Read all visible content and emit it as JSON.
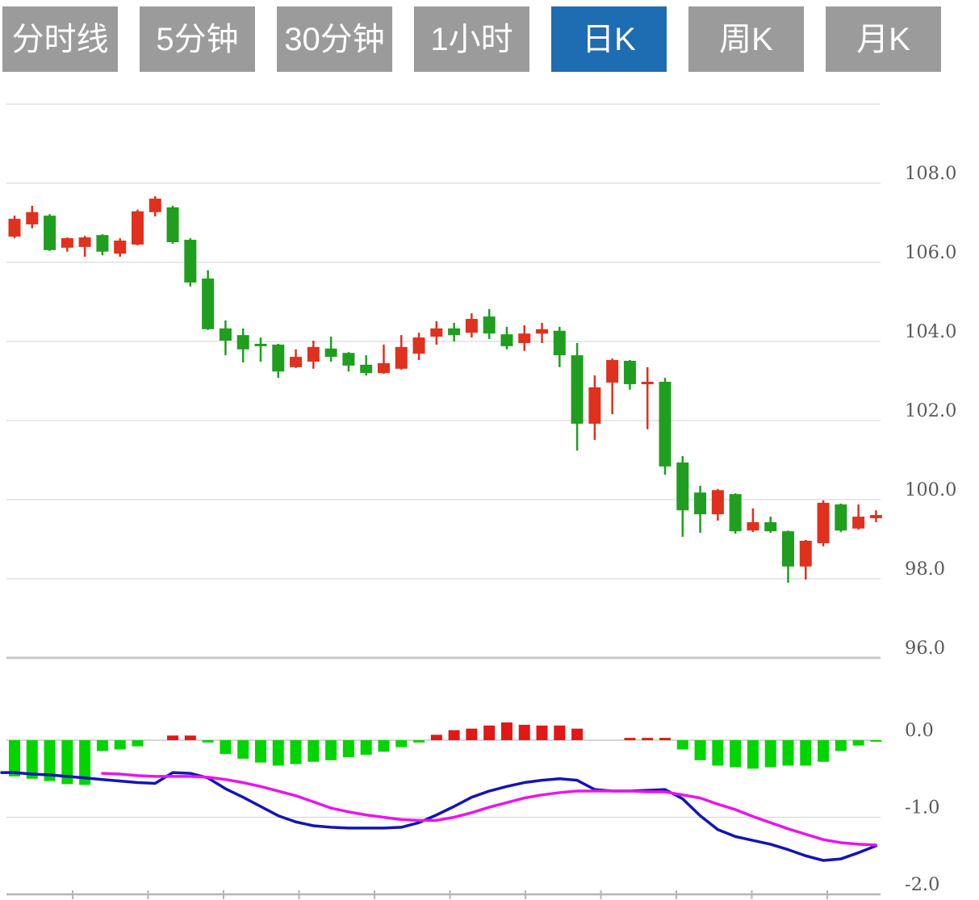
{
  "toolbar": {
    "tabs": [
      {
        "label": "分时线",
        "active": false
      },
      {
        "label": "5分钟",
        "active": false
      },
      {
        "label": "30分钟",
        "active": false
      },
      {
        "label": "1小时",
        "active": false
      },
      {
        "label": "日K",
        "active": true
      },
      {
        "label": "周K",
        "active": false
      },
      {
        "label": "月K",
        "active": false
      }
    ]
  },
  "colors": {
    "tab_inactive_bg": "#9b9b9b",
    "tab_active_bg": "#1e6cb2",
    "tab_text": "#ffffff",
    "up": "#e0301e",
    "down": "#1f9e1f",
    "macd_up": "#e21717",
    "macd_down": "#00d500",
    "dif_line": "#1313bb",
    "dea_line": "#ec13ec",
    "grid": "#d9d9d9",
    "grid_strong": "#c8c8c8",
    "axis_line": "#b5b5b5",
    "axis_text": "#5a5a5a"
  },
  "chart_data": {
    "type": "candlestick",
    "title": "",
    "subtitle": "",
    "convention": "red = up candle, green = down candle (CN market style)",
    "panels": [
      "price-candlesticks",
      "macd-indicator"
    ],
    "grid": true,
    "legend": false,
    "price_axis": {
      "side": "right",
      "tick_labels": [
        "108.0",
        "106.0",
        "104.0",
        "102.0",
        "100.0",
        "98.0",
        "96.0"
      ],
      "tick_values": [
        108,
        106,
        104,
        102,
        100,
        98,
        96
      ],
      "grid_top_value": 110,
      "strong_grid_value": 96,
      "range": [
        95.5,
        110.5
      ]
    },
    "macd_axis": {
      "side": "right",
      "tick_labels": [
        "0.0",
        "-1.0",
        "-2.0"
      ],
      "tick_values": [
        0,
        -1,
        -2
      ],
      "range": [
        -2.1,
        0.6
      ]
    },
    "x_axis": {
      "tick_labels_visible": false,
      "tick_count": 11
    },
    "candles_ohlc_order": [
      "open",
      "close",
      "high",
      "low"
    ],
    "candles": [
      [
        106.65,
        107.1,
        107.18,
        106.61
      ],
      [
        106.96,
        107.27,
        107.43,
        106.86
      ],
      [
        107.18,
        106.31,
        107.22,
        106.29
      ],
      [
        106.37,
        106.61,
        106.63,
        106.27
      ],
      [
        106.39,
        106.63,
        106.67,
        106.14
      ],
      [
        106.69,
        106.27,
        106.71,
        106.18
      ],
      [
        106.22,
        106.55,
        106.61,
        106.14
      ],
      [
        106.45,
        107.29,
        107.33,
        106.43
      ],
      [
        107.27,
        107.61,
        107.67,
        107.16
      ],
      [
        107.39,
        106.51,
        107.43,
        106.47
      ],
      [
        106.57,
        105.49,
        106.61,
        105.39
      ],
      [
        105.59,
        104.31,
        105.8,
        104.29
      ],
      [
        104.33,
        104.02,
        104.53,
        103.65
      ],
      [
        104.16,
        103.8,
        104.33,
        103.47
      ],
      [
        103.94,
        103.88,
        104.1,
        103.49
      ],
      [
        103.92,
        103.24,
        103.94,
        103.08
      ],
      [
        103.35,
        103.61,
        103.8,
        103.33
      ],
      [
        103.49,
        103.86,
        104.02,
        103.31
      ],
      [
        103.82,
        103.61,
        104.12,
        103.49
      ],
      [
        103.71,
        103.39,
        103.73,
        103.24
      ],
      [
        103.41,
        103.2,
        103.65,
        103.14
      ],
      [
        103.2,
        103.45,
        103.92,
        103.18
      ],
      [
        103.31,
        103.86,
        104.16,
        103.29
      ],
      [
        103.69,
        104.1,
        104.22,
        103.53
      ],
      [
        104.12,
        104.33,
        104.51,
        103.92
      ],
      [
        104.33,
        104.16,
        104.47,
        104.0
      ],
      [
        104.22,
        104.57,
        104.71,
        104.1
      ],
      [
        104.63,
        104.2,
        104.82,
        104.06
      ],
      [
        104.18,
        103.88,
        104.37,
        103.8
      ],
      [
        103.96,
        104.2,
        104.41,
        103.76
      ],
      [
        104.2,
        104.31,
        104.47,
        103.96
      ],
      [
        104.27,
        103.65,
        104.37,
        103.35
      ],
      [
        103.65,
        101.92,
        103.96,
        101.24
      ],
      [
        101.92,
        102.84,
        103.14,
        101.51
      ],
      [
        102.96,
        103.53,
        103.57,
        102.16
      ],
      [
        103.51,
        102.92,
        103.53,
        102.78
      ],
      [
        102.92,
        102.98,
        103.35,
        101.78
      ],
      [
        102.98,
        100.84,
        103.08,
        100.63
      ],
      [
        100.94,
        99.73,
        101.1,
        99.06
      ],
      [
        100.18,
        99.63,
        100.35,
        99.16
      ],
      [
        99.63,
        100.24,
        100.27,
        99.47
      ],
      [
        100.14,
        99.2,
        100.16,
        99.14
      ],
      [
        99.22,
        99.43,
        99.78,
        99.18
      ],
      [
        99.43,
        99.2,
        99.57,
        99.16
      ],
      [
        99.2,
        98.31,
        99.22,
        97.9
      ],
      [
        98.31,
        98.96,
        98.98,
        97.98
      ],
      [
        98.9,
        99.92,
        99.98,
        98.82
      ],
      [
        99.88,
        99.22,
        99.9,
        99.18
      ],
      [
        99.27,
        99.57,
        99.88,
        99.24
      ],
      [
        99.53,
        99.61,
        99.73,
        99.43
      ]
    ],
    "macd_histogram": [
      -0.47,
      -0.5,
      -0.53,
      -0.57,
      -0.58,
      -0.14,
      -0.12,
      -0.08,
      0,
      0.06,
      0.06,
      -0.03,
      -0.18,
      -0.24,
      -0.29,
      -0.33,
      -0.31,
      -0.28,
      -0.26,
      -0.22,
      -0.19,
      -0.15,
      -0.09,
      -0.03,
      0.07,
      0.13,
      0.15,
      0.19,
      0.23,
      0.2,
      0.19,
      0.19,
      0.15,
      0,
      0,
      0.03,
      0.03,
      0.03,
      -0.12,
      -0.26,
      -0.33,
      -0.35,
      -0.37,
      -0.35,
      -0.33,
      -0.33,
      -0.28,
      -0.14,
      -0.07,
      -0.02
    ],
    "dif": [
      -0.42,
      -0.44,
      -0.45,
      -0.47,
      -0.49,
      -0.51,
      -0.53,
      -0.55,
      -0.56,
      -0.42,
      -0.43,
      -0.49,
      -0.63,
      -0.74,
      -0.86,
      -0.98,
      -1.06,
      -1.11,
      -1.13,
      -1.14,
      -1.14,
      -1.14,
      -1.13,
      -1.07,
      -0.97,
      -0.86,
      -0.74,
      -0.66,
      -0.6,
      -0.55,
      -0.52,
      -0.5,
      -0.52,
      -0.64,
      -0.66,
      -0.66,
      -0.65,
      -0.64,
      -0.76,
      -0.98,
      -1.16,
      -1.25,
      -1.3,
      -1.35,
      -1.42,
      -1.5,
      -1.56,
      -1.54,
      -1.46,
      -1.37
    ],
    "dea": [
      null,
      null,
      null,
      null,
      null,
      -0.43,
      -0.44,
      -0.46,
      -0.47,
      -0.47,
      -0.47,
      -0.48,
      -0.51,
      -0.55,
      -0.6,
      -0.66,
      -0.72,
      -0.8,
      -0.88,
      -0.93,
      -0.97,
      -1.0,
      -1.03,
      -1.04,
      -1.04,
      -1.0,
      -0.94,
      -0.87,
      -0.81,
      -0.75,
      -0.71,
      -0.68,
      -0.66,
      -0.66,
      -0.66,
      -0.66,
      -0.67,
      -0.67,
      -0.71,
      -0.75,
      -0.83,
      -0.9,
      -0.99,
      -1.07,
      -1.15,
      -1.22,
      -1.29,
      -1.33,
      -1.35,
      -1.36
    ]
  }
}
